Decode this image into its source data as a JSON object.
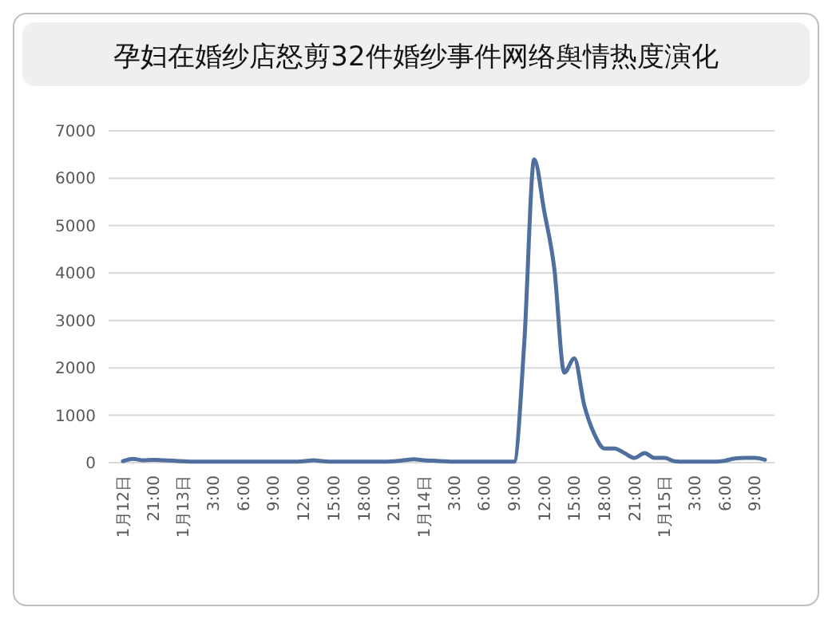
{
  "chart_data": {
    "type": "line",
    "title": "孕妇在婚纱店怒剪32件婚纱事件网络舆情热度演化",
    "categories": [
      "1月12日",
      null,
      null,
      "21:00",
      null,
      null,
      "1月13日",
      null,
      null,
      "3:00",
      null,
      null,
      "6:00",
      null,
      null,
      "9:00",
      null,
      null,
      "12:00",
      null,
      null,
      "15:00",
      null,
      null,
      "18:00",
      null,
      null,
      "21:00",
      null,
      null,
      "1月14日",
      null,
      null,
      "3:00",
      null,
      null,
      "6:00",
      null,
      null,
      "9:00",
      null,
      null,
      "12:00",
      null,
      null,
      "15:00",
      null,
      null,
      "18:00",
      null,
      null,
      "21:00",
      null,
      null,
      "1月15日",
      null,
      null,
      "3:00",
      null,
      null,
      "6:00",
      null,
      null,
      "9:00",
      null
    ],
    "series": [
      {
        "color": "#4f6f9f",
        "values": [
          30,
          80,
          50,
          60,
          50,
          40,
          30,
          20,
          20,
          20,
          20,
          20,
          20,
          20,
          20,
          20,
          20,
          20,
          30,
          50,
          30,
          20,
          20,
          20,
          20,
          20,
          20,
          30,
          50,
          70,
          50,
          40,
          30,
          20,
          20,
          20,
          20,
          20,
          20,
          20,
          2500,
          6400,
          5300,
          4100,
          1900,
          2200,
          1200,
          600,
          300,
          300,
          200,
          100,
          200,
          100,
          100,
          30,
          20,
          20,
          20,
          20,
          40,
          90,
          100,
          100,
          60
        ]
      }
    ],
    "ylim": [
      0,
      7000
    ],
    "yticks": [
      0,
      1000,
      2000,
      3000,
      4000,
      5000,
      6000,
      7000
    ],
    "grid": "y",
    "marker": "none",
    "line_style": "solid"
  }
}
